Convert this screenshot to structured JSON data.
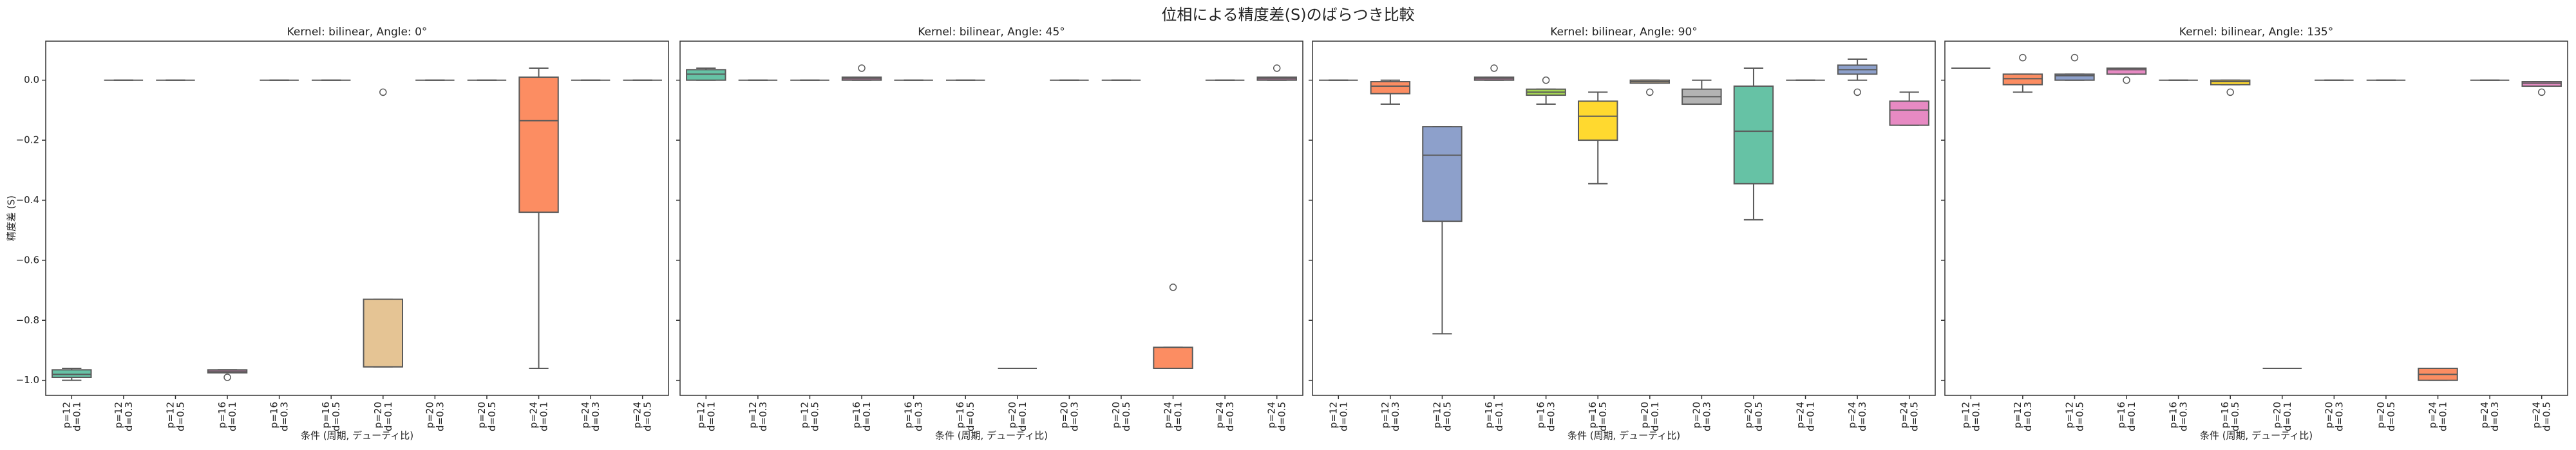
{
  "title": "位相による精度差(S)のばらつき比較",
  "chart_data": [
    {
      "type": "box",
      "title": "Kernel: bilinear, Angle: 0°",
      "xlabel": "条件 (周期, デューティ比)",
      "ylabel": "精度差 (S)",
      "ylim": [
        -1.05,
        0.13
      ],
      "yticks": [
        {
          "value": 0.0,
          "label": "0.0"
        },
        {
          "value": -0.2,
          "label": "−0.2"
        },
        {
          "value": -0.4,
          "label": "−0.4"
        },
        {
          "value": -0.6,
          "label": "−0.6"
        },
        {
          "value": -0.8,
          "label": "−0.8"
        },
        {
          "value": -1.0,
          "label": "−1.0"
        }
      ],
      "categories": [
        "p=12\nd=0.1",
        "p=12\nd=0.3",
        "p=12\nd=0.5",
        "p=16\nd=0.1",
        "p=16\nd=0.3",
        "p=16\nd=0.5",
        "p=20\nd=0.1",
        "p=20\nd=0.3",
        "p=20\nd=0.5",
        "p=24\nd=0.1",
        "p=24\nd=0.3",
        "p=24\nd=0.5"
      ],
      "colors": [
        "#66c2a5",
        "#fc8d62",
        "#8da0cb",
        "#e78ac3",
        "#a6d854",
        "#ffd92f",
        "#e5c494",
        "#b3b3b3",
        "#66c2a5",
        "#fc8d62",
        "#8da0cb",
        "#e78ac3"
      ],
      "boxes": [
        {
          "whislo": -1.0,
          "q1": -0.99,
          "med": -0.98,
          "q3": -0.965,
          "whishi": -0.96,
          "fliers": []
        },
        {
          "whislo": 0,
          "q1": 0,
          "med": 0,
          "q3": 0,
          "whishi": 0,
          "fliers": []
        },
        {
          "whislo": 0,
          "q1": 0,
          "med": 0,
          "q3": 0,
          "whishi": 0,
          "fliers": []
        },
        {
          "whislo": -0.975,
          "q1": -0.975,
          "med": -0.97,
          "q3": -0.965,
          "whishi": -0.965,
          "fliers": [
            -0.99
          ]
        },
        {
          "whislo": 0,
          "q1": 0,
          "med": 0,
          "q3": 0,
          "whishi": 0,
          "fliers": []
        },
        {
          "whislo": 0,
          "q1": 0,
          "med": 0,
          "q3": 0,
          "whishi": 0,
          "fliers": []
        },
        {
          "whislo": -0.955,
          "q1": -0.955,
          "med": -0.955,
          "q3": -0.73,
          "whishi": -0.73,
          "fliers": [
            -0.04
          ]
        },
        {
          "whislo": 0,
          "q1": 0,
          "med": 0,
          "q3": 0,
          "whishi": 0,
          "fliers": []
        },
        {
          "whislo": 0,
          "q1": 0,
          "med": 0,
          "q3": 0,
          "whishi": 0,
          "fliers": []
        },
        {
          "whislo": -0.96,
          "q1": -0.44,
          "med": -0.135,
          "q3": 0.01,
          "whishi": 0.04,
          "fliers": []
        },
        {
          "whislo": 0,
          "q1": 0,
          "med": 0,
          "q3": 0,
          "whishi": 0,
          "fliers": []
        },
        {
          "whislo": 0,
          "q1": 0,
          "med": 0,
          "q3": 0,
          "whishi": 0,
          "fliers": []
        }
      ]
    },
    {
      "type": "box",
      "title": "Kernel: bilinear, Angle: 45°",
      "xlabel": "条件 (周期, デューティ比)",
      "categories": [
        "p=12\nd=0.1",
        "p=12\nd=0.3",
        "p=12\nd=0.5",
        "p=16\nd=0.1",
        "p=16\nd=0.3",
        "p=16\nd=0.5",
        "p=20\nd=0.1",
        "p=20\nd=0.3",
        "p=20\nd=0.5",
        "p=24\nd=0.1",
        "p=24\nd=0.3",
        "p=24\nd=0.5"
      ],
      "colors": [
        "#66c2a5",
        "#fc8d62",
        "#8da0cb",
        "#e78ac3",
        "#a6d854",
        "#ffd92f",
        "#e5c494",
        "#b3b3b3",
        "#66c2a5",
        "#fc8d62",
        "#8da0cb",
        "#e78ac3"
      ],
      "boxes": [
        {
          "whislo": 0.0,
          "q1": 0.0,
          "med": 0.02,
          "q3": 0.035,
          "whishi": 0.04,
          "fliers": []
        },
        {
          "whislo": 0,
          "q1": 0,
          "med": 0,
          "q3": 0,
          "whishi": 0,
          "fliers": []
        },
        {
          "whislo": 0,
          "q1": 0,
          "med": 0,
          "q3": 0,
          "whishi": 0,
          "fliers": []
        },
        {
          "whislo": 0,
          "q1": 0,
          "med": 0.005,
          "q3": 0.01,
          "whishi": 0.01,
          "fliers": [
            0.04
          ]
        },
        {
          "whislo": 0,
          "q1": 0,
          "med": 0,
          "q3": 0,
          "whishi": 0,
          "fliers": []
        },
        {
          "whislo": 0,
          "q1": 0,
          "med": 0,
          "q3": 0,
          "whishi": 0,
          "fliers": []
        },
        {
          "whislo": -0.96,
          "q1": -0.96,
          "med": -0.96,
          "q3": -0.96,
          "whishi": -0.96,
          "fliers": []
        },
        {
          "whislo": 0,
          "q1": 0,
          "med": 0,
          "q3": 0,
          "whishi": 0,
          "fliers": []
        },
        {
          "whislo": 0,
          "q1": 0,
          "med": 0,
          "q3": 0,
          "whishi": 0,
          "fliers": []
        },
        {
          "whislo": -0.96,
          "q1": -0.96,
          "med": -0.96,
          "q3": -0.89,
          "whishi": -0.89,
          "fliers": [
            -0.69
          ]
        },
        {
          "whislo": 0,
          "q1": 0,
          "med": 0,
          "q3": 0,
          "whishi": 0,
          "fliers": []
        },
        {
          "whislo": 0,
          "q1": 0,
          "med": 0.005,
          "q3": 0.01,
          "whishi": 0.01,
          "fliers": [
            0.04
          ]
        }
      ]
    },
    {
      "type": "box",
      "title": "Kernel: bilinear, Angle: 90°",
      "xlabel": "条件 (周期, デューティ比)",
      "categories": [
        "p=12\nd=0.1",
        "p=12\nd=0.3",
        "p=12\nd=0.5",
        "p=16\nd=0.1",
        "p=16\nd=0.3",
        "p=16\nd=0.5",
        "p=20\nd=0.1",
        "p=20\nd=0.3",
        "p=20\nd=0.5",
        "p=24\nd=0.1",
        "p=24\nd=0.3",
        "p=24\nd=0.5"
      ],
      "colors": [
        "#66c2a5",
        "#fc8d62",
        "#8da0cb",
        "#e78ac3",
        "#a6d854",
        "#ffd92f",
        "#e5c494",
        "#b3b3b3",
        "#66c2a5",
        "#fc8d62",
        "#8da0cb",
        "#e78ac3"
      ],
      "boxes": [
        {
          "whislo": 0,
          "q1": 0,
          "med": 0,
          "q3": 0,
          "whishi": 0,
          "fliers": []
        },
        {
          "whislo": -0.08,
          "q1": -0.045,
          "med": -0.02,
          "q3": -0.005,
          "whishi": 0.0,
          "fliers": []
        },
        {
          "whislo": -0.845,
          "q1": -0.47,
          "med": -0.25,
          "q3": -0.155,
          "whishi": -0.155,
          "fliers": []
        },
        {
          "whislo": 0,
          "q1": 0,
          "med": 0.005,
          "q3": 0.01,
          "whishi": 0.01,
          "fliers": [
            0.04
          ]
        },
        {
          "whislo": -0.08,
          "q1": -0.05,
          "med": -0.04,
          "q3": -0.03,
          "whishi": -0.03,
          "fliers": [
            0.0
          ]
        },
        {
          "whislo": -0.345,
          "q1": -0.2,
          "med": -0.12,
          "q3": -0.07,
          "whishi": -0.04,
          "fliers": []
        },
        {
          "whislo": -0.01,
          "q1": -0.01,
          "med": -0.005,
          "q3": 0.0,
          "whishi": 0.0,
          "fliers": [
            -0.04
          ]
        },
        {
          "whislo": -0.08,
          "q1": -0.08,
          "med": -0.055,
          "q3": -0.03,
          "whishi": 0.0,
          "fliers": []
        },
        {
          "whislo": -0.465,
          "q1": -0.345,
          "med": -0.17,
          "q3": -0.02,
          "whishi": 0.04,
          "fliers": []
        },
        {
          "whislo": 0,
          "q1": 0,
          "med": 0,
          "q3": 0,
          "whishi": 0,
          "fliers": []
        },
        {
          "whislo": 0.0,
          "q1": 0.02,
          "med": 0.035,
          "q3": 0.05,
          "whishi": 0.07,
          "fliers": [
            -0.04
          ]
        },
        {
          "whislo": -0.15,
          "q1": -0.15,
          "med": -0.1,
          "q3": -0.07,
          "whishi": -0.04,
          "fliers": []
        }
      ]
    },
    {
      "type": "box",
      "title": "Kernel: bilinear, Angle: 135°",
      "xlabel": "条件 (周期, デューティ比)",
      "categories": [
        "p=12\nd=0.1",
        "p=12\nd=0.3",
        "p=12\nd=0.5",
        "p=16\nd=0.1",
        "p=16\nd=0.3",
        "p=16\nd=0.5",
        "p=20\nd=0.1",
        "p=20\nd=0.3",
        "p=20\nd=0.5",
        "p=24\nd=0.1",
        "p=24\nd=0.3",
        "p=24\nd=0.5"
      ],
      "colors": [
        "#66c2a5",
        "#fc8d62",
        "#8da0cb",
        "#e78ac3",
        "#a6d854",
        "#ffd92f",
        "#e5c494",
        "#b3b3b3",
        "#66c2a5",
        "#fc8d62",
        "#8da0cb",
        "#e78ac3"
      ],
      "boxes": [
        {
          "whislo": 0.04,
          "q1": 0.04,
          "med": 0.04,
          "q3": 0.04,
          "whishi": 0.04,
          "fliers": []
        },
        {
          "whislo": -0.04,
          "q1": -0.015,
          "med": 0.005,
          "q3": 0.02,
          "whishi": 0.02,
          "fliers": [
            0.075
          ]
        },
        {
          "whislo": 0.0,
          "q1": 0.0,
          "med": 0.015,
          "q3": 0.02,
          "whishi": 0.02,
          "fliers": [
            0.075
          ]
        },
        {
          "whislo": 0.02,
          "q1": 0.02,
          "med": 0.035,
          "q3": 0.04,
          "whishi": 0.04,
          "fliers": [
            0.0
          ]
        },
        {
          "whislo": 0,
          "q1": 0,
          "med": 0,
          "q3": 0,
          "whishi": 0,
          "fliers": []
        },
        {
          "whislo": -0.015,
          "q1": -0.015,
          "med": -0.005,
          "q3": 0.0,
          "whishi": 0.0,
          "fliers": [
            -0.04
          ]
        },
        {
          "whislo": -0.96,
          "q1": -0.96,
          "med": -0.96,
          "q3": -0.96,
          "whishi": -0.96,
          "fliers": []
        },
        {
          "whislo": 0,
          "q1": 0,
          "med": 0,
          "q3": 0,
          "whishi": 0,
          "fliers": []
        },
        {
          "whislo": 0,
          "q1": 0,
          "med": 0,
          "q3": 0,
          "whishi": 0,
          "fliers": []
        },
        {
          "whislo": -1.0,
          "q1": -1.0,
          "med": -0.98,
          "q3": -0.96,
          "whishi": -0.96,
          "fliers": []
        },
        {
          "whislo": 0,
          "q1": 0,
          "med": 0,
          "q3": 0,
          "whishi": 0,
          "fliers": []
        },
        {
          "whislo": -0.02,
          "q1": -0.02,
          "med": -0.01,
          "q3": -0.005,
          "whishi": -0.005,
          "fliers": [
            -0.04
          ]
        }
      ]
    }
  ]
}
